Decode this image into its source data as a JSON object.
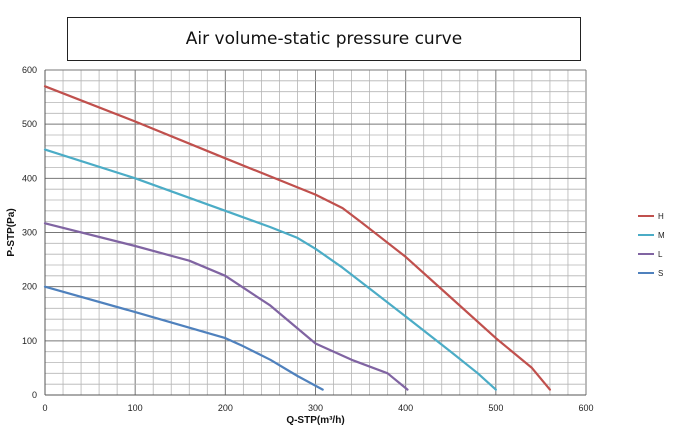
{
  "chart_data": {
    "type": "line",
    "title": "Air volume-static pressure curve",
    "xlabel": "Q-STP(m³/h)",
    "ylabel": "P-STP(Pa)",
    "xlim": [
      0,
      600
    ],
    "ylim": [
      0,
      600
    ],
    "x_ticks": [
      "0",
      "100",
      "200",
      "300",
      "400",
      "500",
      "600"
    ],
    "y_ticks": [
      "0",
      "100",
      "200",
      "300",
      "400",
      "500",
      "600"
    ],
    "grid": true,
    "legend": "right",
    "series": [
      {
        "name": "H",
        "color": "#c0504d",
        "x": [
          0,
          100,
          200,
          300,
          330,
          350,
          400,
          450,
          500,
          540,
          560
        ],
        "y": [
          570,
          505,
          437,
          370,
          345,
          320,
          255,
          180,
          105,
          50,
          10
        ]
      },
      {
        "name": "M",
        "color": "#4bacc6",
        "x": [
          0,
          100,
          200,
          250,
          280,
          300,
          330,
          400,
          450,
          480,
          500
        ],
        "y": [
          453,
          400,
          340,
          310,
          290,
          270,
          235,
          145,
          80,
          40,
          10
        ]
      },
      {
        "name": "L",
        "color": "#8064a2",
        "x": [
          0,
          100,
          160,
          200,
          250,
          300,
          340,
          380,
          402
        ],
        "y": [
          317,
          275,
          248,
          220,
          165,
          95,
          65,
          40,
          10
        ]
      },
      {
        "name": "S",
        "color": "#4f81bd",
        "x": [
          0,
          100,
          200,
          220,
          250,
          280,
          308
        ],
        "y": [
          200,
          153,
          105,
          90,
          65,
          35,
          10
        ]
      }
    ]
  }
}
